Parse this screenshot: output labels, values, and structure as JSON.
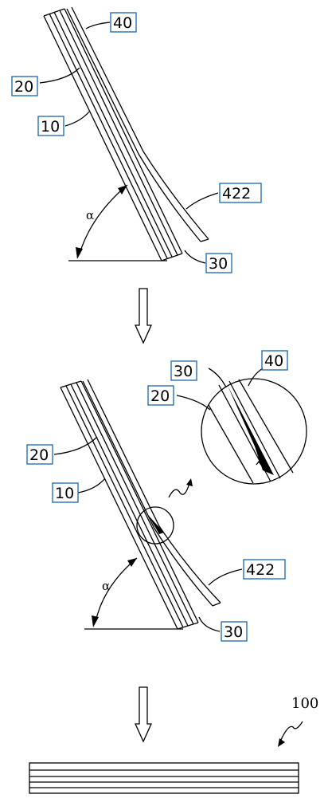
{
  "stage1": {
    "labels": {
      "l40": "40",
      "l20": "20",
      "l10": "10",
      "l422": "422",
      "l30": "30"
    },
    "angle": "α"
  },
  "stage2": {
    "labels": {
      "l30": "30",
      "l40": "40",
      "l20": "20",
      "l20b": "20",
      "l10": "10",
      "l422": "422",
      "l30b": "30"
    },
    "angle": "α"
  },
  "stage3": {
    "label": "100"
  }
}
